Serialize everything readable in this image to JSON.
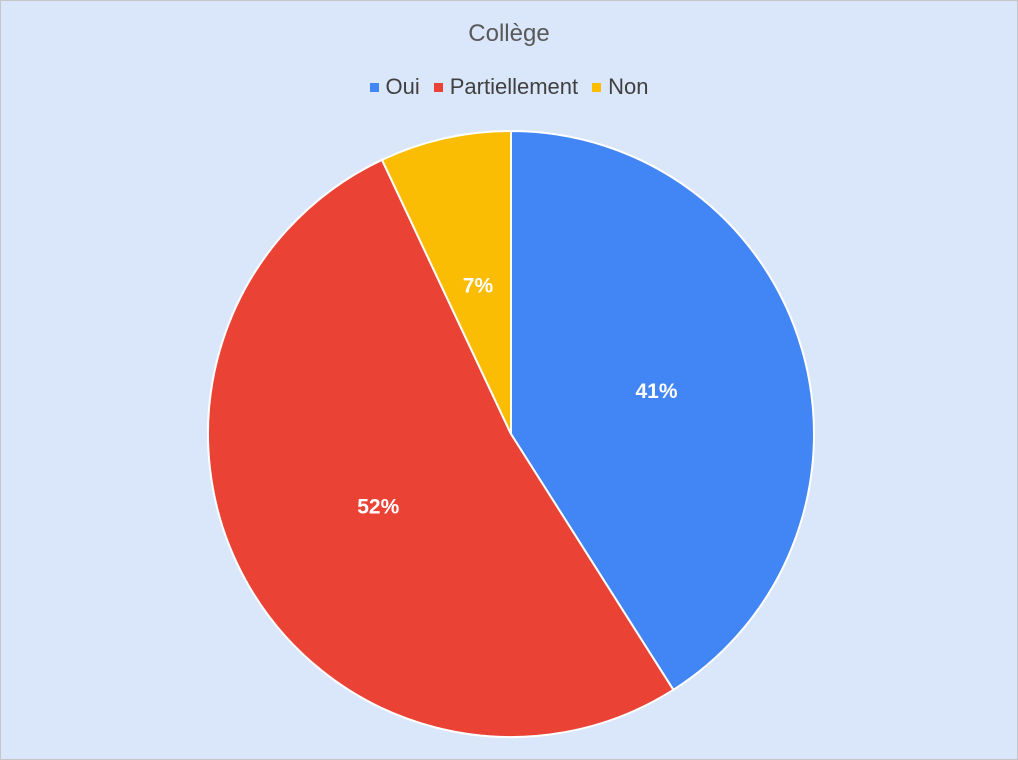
{
  "chart_data": {
    "type": "pie",
    "title": "Collège",
    "legend_position": "top",
    "categories": [
      "Oui",
      "Partiellement",
      "Non"
    ],
    "values": [
      41,
      52,
      7
    ],
    "labels": [
      "41%",
      "52%",
      "7%"
    ],
    "colors": [
      "#4285f4",
      "#ea4335",
      "#fbbc04"
    ],
    "start_angle_deg": 0,
    "direction": "clockwise"
  }
}
